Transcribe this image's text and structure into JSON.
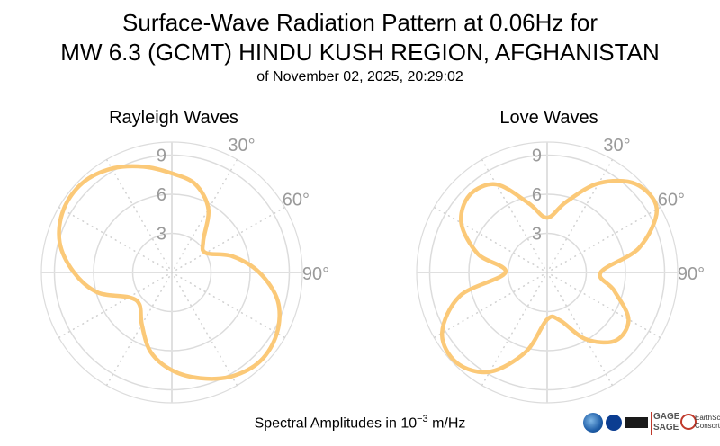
{
  "title_line1": "Surface-Wave Radiation Pattern at 0.06Hz for",
  "title_line2": "MW 6.3 (GCMT) HINDU KUSH REGION, AFGHANISTAN",
  "subtitle": "of November 02, 2025, 20:29:02",
  "footer": {
    "prefix": "Spectral Amplitudes in ",
    "base": "10",
    "exp": "−3",
    "unit": " m/Hz"
  },
  "logos": {
    "gage_line1": "GAGE",
    "gage_line2": "SAGE",
    "es_line1": "EarthScope",
    "es_line2": "Consortium"
  },
  "colors": {
    "pattern": "#FBC978",
    "grid": "#dcdcdc",
    "axis": "#e0e0e0",
    "labels": "#9a9a9a"
  },
  "chart_data": [
    {
      "type": "polar-line",
      "title": "Rayleigh Waves",
      "radial_ticks": [
        "3",
        "6",
        "9"
      ],
      "radial_max": 10,
      "angle_tick_labels": [
        "30°",
        "60°",
        "90°"
      ],
      "angle_direction": "clockwise from north",
      "series": [
        {
          "angle_deg": [
            0,
            15,
            30,
            45,
            60,
            75,
            90,
            105,
            120,
            135,
            150,
            165,
            180,
            195,
            210,
            225,
            240,
            255,
            270,
            285,
            300,
            315,
            330,
            345
          ],
          "r": [
            7.6,
            7.0,
            5.6,
            3.4,
            3.0,
            4.8,
            6.7,
            8.4,
            9.3,
            9.6,
            9.2,
            8.4,
            7.5,
            6.3,
            4.6,
            3.5,
            3.8,
            5.9,
            7.5,
            8.9,
            9.6,
            9.7,
            9.2,
            8.4
          ]
        }
      ]
    },
    {
      "type": "polar-line",
      "title": "Love Waves",
      "radial_ticks": [
        "3",
        "6",
        "9"
      ],
      "radial_max": 10,
      "angle_tick_labels": [
        "30°",
        "60°",
        "90°"
      ],
      "angle_direction": "clockwise from north",
      "series": [
        {
          "angle_deg": [
            0,
            15,
            30,
            45,
            60,
            75,
            90,
            105,
            120,
            135,
            150,
            165,
            180,
            195,
            210,
            225,
            240,
            255,
            270,
            285,
            300,
            315,
            330,
            345
          ],
          "r": [
            4.2,
            5.6,
            7.9,
            9.6,
            9.7,
            7.3,
            4.1,
            5.3,
            7.2,
            7.4,
            5.9,
            3.8,
            3.6,
            6.3,
            8.8,
            9.8,
            9.3,
            6.9,
            3.2,
            5.5,
            7.6,
            8.4,
            7.8,
            5.5
          ]
        }
      ]
    }
  ]
}
